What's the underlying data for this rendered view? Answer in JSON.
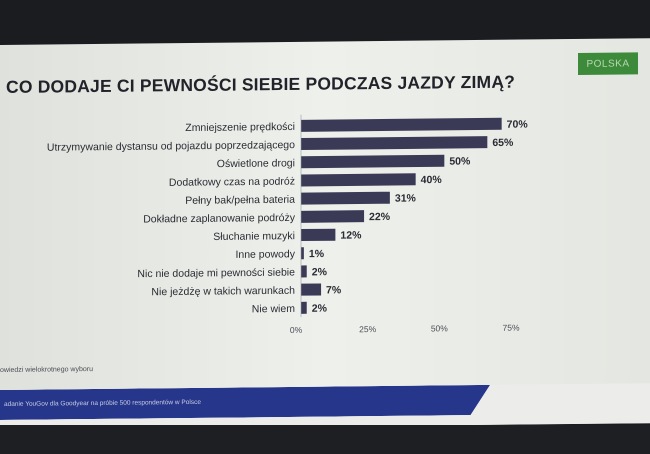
{
  "title": "CO DODAJE CI PEWNOŚCI SIEBIE PODCZAS JAZDY ZIMĄ?",
  "badge": "POLSKA",
  "note": "owiedzi wielokrotnego wyboru",
  "footer": "adanie YouGov dla Goodyear na próbie 500 respondentów w Polsce",
  "colors": {
    "bar": "#3b3a56",
    "badge": "#3c8a3a",
    "footer": "#26368a"
  },
  "chart_data": {
    "type": "bar",
    "orientation": "horizontal",
    "categories": [
      "Zmniejszenie prędkości",
      "Utrzymywanie dystansu od pojazdu poprzedzającego",
      "Oświetlone drogi",
      "Dodatkowy czas na podróż",
      "Pełny bak/pełna bateria",
      "Dokładne zaplanowanie podróży",
      "Słuchanie muzyki",
      "Inne powody",
      "Nic nie dodaje mi pewności siebie",
      "Nie jeżdżę w takich warunkach",
      "Nie wiem"
    ],
    "values": [
      70,
      65,
      50,
      40,
      31,
      22,
      12,
      1,
      2,
      7,
      2
    ],
    "value_labels": [
      "70%",
      "65%",
      "50%",
      "40%",
      "31%",
      "22%",
      "12%",
      "1%",
      "2%",
      "7%",
      "2%"
    ],
    "xlim": [
      0,
      75
    ],
    "x_ticks": [
      "0%",
      "25%",
      "50%",
      "75%"
    ],
    "x_tick_values": [
      0,
      25,
      50,
      75
    ],
    "grid": false
  }
}
